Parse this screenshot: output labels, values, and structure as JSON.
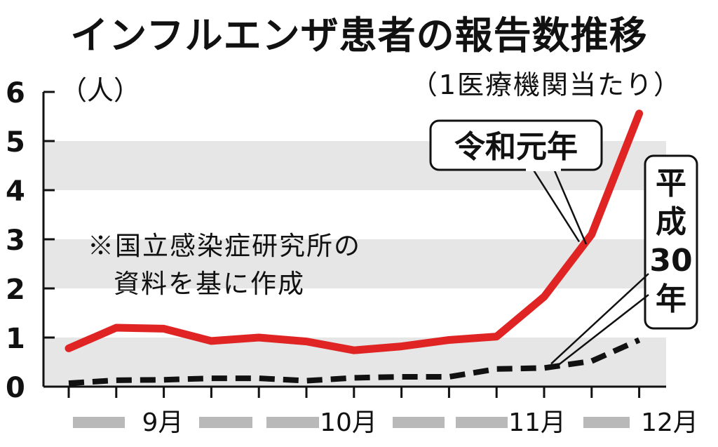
{
  "chart_data": {
    "type": "line",
    "title": "インフルエンザ患者の報告数推移",
    "subtitle": "（1医療機関当たり）",
    "ylabel": "（人）",
    "ylim": [
      0,
      6
    ],
    "yticks": [
      "0",
      "1",
      "2",
      "3",
      "4",
      "5",
      "6"
    ],
    "grid": "alternating horizontal bands",
    "x_labels": [
      "9月",
      "10月",
      "11月",
      "12月"
    ],
    "note": [
      "※国立感染症研究所の",
      "資料を基に作成"
    ],
    "series": [
      {
        "name": "令和元年",
        "color": "#e02424",
        "style": "solid",
        "values": [
          0.78,
          1.2,
          1.18,
          0.93,
          1.0,
          0.92,
          0.74,
          0.82,
          0.95,
          1.02,
          1.83,
          3.1,
          5.56
        ]
      },
      {
        "name": "平成30年",
        "color": "#111111",
        "style": "dashed",
        "values": [
          0.07,
          0.13,
          0.14,
          0.17,
          0.17,
          0.12,
          0.18,
          0.2,
          0.2,
          0.36,
          0.38,
          0.52,
          0.95
        ]
      }
    ]
  }
}
